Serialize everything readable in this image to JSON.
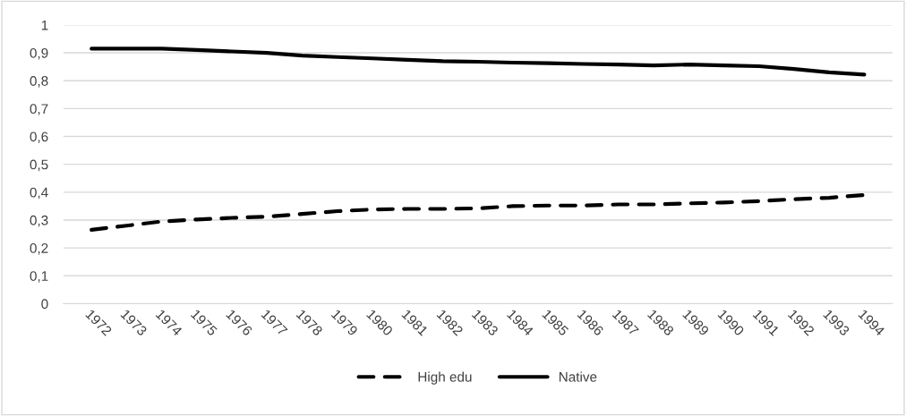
{
  "chart_data": {
    "type": "line",
    "categories": [
      "1972",
      "1973",
      "1974",
      "1975",
      "1976",
      "1977",
      "1978",
      "1979",
      "1980",
      "1981",
      "1982",
      "1983",
      "1984",
      "1985",
      "1986",
      "1987",
      "1988",
      "1989",
      "1990",
      "1991",
      "1992",
      "1993",
      "1994"
    ],
    "series": [
      {
        "name": "High edu",
        "color": "#000000",
        "line_style": "dashed",
        "values": [
          0.265,
          0.28,
          0.295,
          0.302,
          0.308,
          0.312,
          0.322,
          0.332,
          0.338,
          0.34,
          0.34,
          0.342,
          0.35,
          0.352,
          0.352,
          0.356,
          0.356,
          0.36,
          0.363,
          0.368,
          0.375,
          0.38,
          0.39
        ]
      },
      {
        "name": "Native",
        "color": "#000000",
        "line_style": "solid",
        "values": [
          0.915,
          0.915,
          0.915,
          0.91,
          0.905,
          0.9,
          0.89,
          0.885,
          0.88,
          0.875,
          0.87,
          0.868,
          0.865,
          0.863,
          0.86,
          0.858,
          0.855,
          0.858,
          0.855,
          0.852,
          0.842,
          0.83,
          0.822
        ]
      }
    ],
    "ylim": [
      0,
      1
    ],
    "yticks": [
      {
        "value": 0,
        "label": "0"
      },
      {
        "value": 0.1,
        "label": "0,1"
      },
      {
        "value": 0.2,
        "label": "0,2"
      },
      {
        "value": 0.3,
        "label": "0,3"
      },
      {
        "value": 0.4,
        "label": "0,4"
      },
      {
        "value": 0.5,
        "label": "0,5"
      },
      {
        "value": 0.6,
        "label": "0,6"
      },
      {
        "value": 0.7,
        "label": "0,7"
      },
      {
        "value": 0.8,
        "label": "0,8"
      },
      {
        "value": 0.9,
        "label": "0,9"
      },
      {
        "value": 1,
        "label": "1"
      }
    ],
    "grid": "y",
    "legend": "bottom",
    "marker": "none"
  }
}
